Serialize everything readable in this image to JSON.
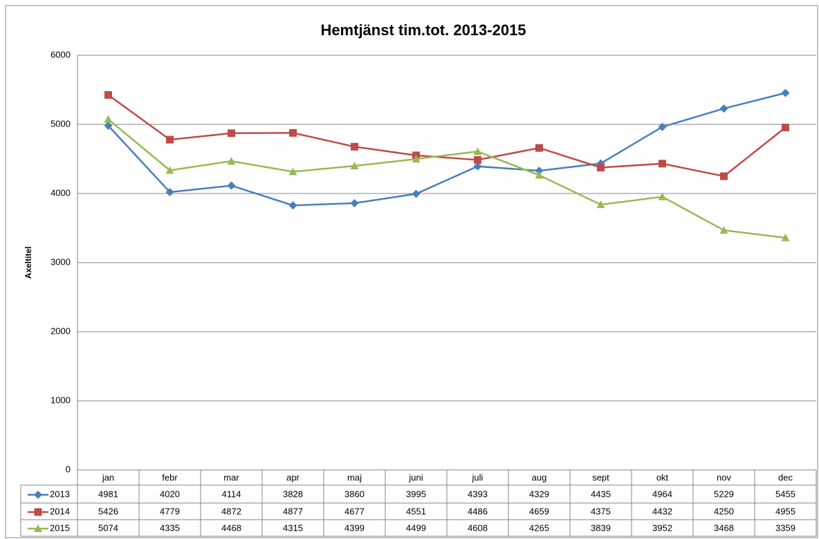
{
  "chart_data": {
    "type": "line",
    "title": "Hemtjänst tim.tot. 2013-2015",
    "y_label": "Axeltitel",
    "categories": [
      "jan",
      "febr",
      "mar",
      "apr",
      "maj",
      "juni",
      "juli",
      "aug",
      "sept",
      "okt",
      "nov",
      "dec"
    ],
    "series": [
      {
        "name": "2013",
        "color": "#4a7ebb",
        "marker": "diamond",
        "values": [
          4981,
          4020,
          4114,
          3828,
          3860,
          3995,
          4393,
          4329,
          4435,
          4964,
          5229,
          5455
        ]
      },
      {
        "name": "2014",
        "color": "#be4b48",
        "marker": "square",
        "values": [
          5426,
          4779,
          4872,
          4877,
          4677,
          4551,
          4486,
          4659,
          4375,
          4432,
          4250,
          4955
        ]
      },
      {
        "name": "2015",
        "color": "#98b954",
        "marker": "triangle",
        "values": [
          5074,
          4335,
          4468,
          4315,
          4399,
          4499,
          4608,
          4265,
          3839,
          3952,
          3468,
          3359
        ]
      }
    ],
    "ylim": [
      0,
      6000
    ],
    "yticks": [
      0,
      1000,
      2000,
      3000,
      4000,
      5000,
      6000
    ],
    "grid": true
  }
}
